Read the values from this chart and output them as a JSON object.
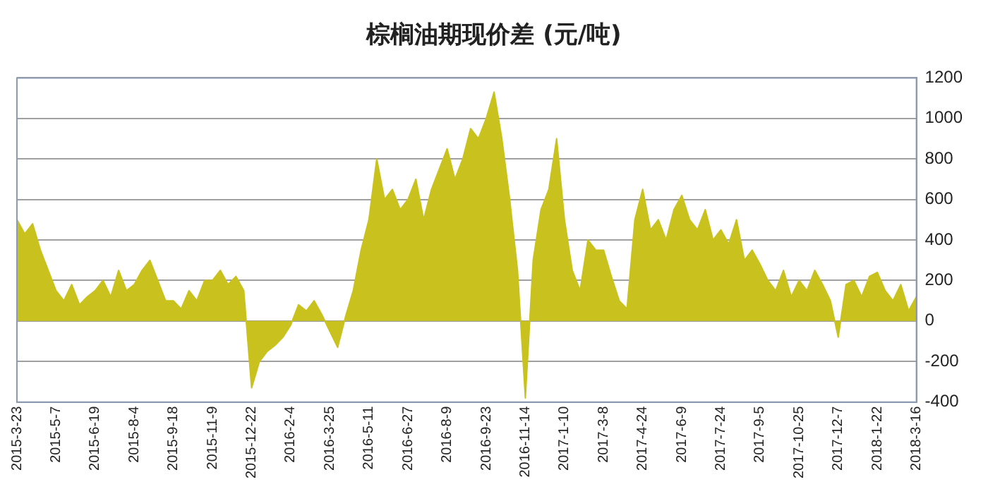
{
  "chart_data": {
    "type": "area",
    "title": "棕榈油期现价差 (元/吨)",
    "categories": [
      "2015-3-23",
      null,
      null,
      null,
      null,
      "2015-5-7",
      null,
      null,
      null,
      null,
      "2015-6-19",
      null,
      null,
      null,
      null,
      "2015-8-4",
      null,
      null,
      null,
      null,
      "2015-9-18",
      null,
      null,
      null,
      null,
      "2015-11-9",
      null,
      null,
      null,
      null,
      "2015-12-22",
      null,
      null,
      null,
      null,
      "2016-2-4",
      null,
      null,
      null,
      null,
      "2016-3-25",
      null,
      null,
      null,
      null,
      "2016-5-11",
      null,
      null,
      null,
      null,
      "2016-6-27",
      null,
      null,
      null,
      null,
      "2016-8-9",
      null,
      null,
      null,
      null,
      "2016-9-23",
      null,
      null,
      null,
      null,
      "2016-11-14",
      null,
      null,
      null,
      null,
      "2017-1-10",
      null,
      null,
      null,
      null,
      "2017-3-8",
      null,
      null,
      null,
      null,
      "2017-4-24",
      null,
      null,
      null,
      null,
      "2017-6-9",
      null,
      null,
      null,
      null,
      "2017-7-24",
      null,
      null,
      null,
      null,
      "2017-9-5",
      null,
      null,
      null,
      null,
      "2017-10-25",
      null,
      null,
      null,
      null,
      "2017-12-7",
      null,
      null,
      null,
      null,
      "2018-1-22",
      null,
      null,
      null,
      null,
      "2018-3-16"
    ],
    "series": [
      {
        "color": "#c9c21e",
        "values": [
          500,
          430,
          480,
          350,
          250,
          150,
          100,
          180,
          80,
          120,
          150,
          200,
          120,
          250,
          150,
          180,
          250,
          300,
          200,
          100,
          100,
          60,
          150,
          100,
          200,
          200,
          250,
          180,
          220,
          150,
          -330,
          -200,
          -150,
          -120,
          -80,
          -20,
          80,
          50,
          100,
          30,
          -50,
          -130,
          20,
          150,
          350,
          500,
          800,
          600,
          650,
          550,
          600,
          700,
          500,
          650,
          750,
          850,
          700,
          800,
          950,
          900,
          1000,
          1130,
          900,
          600,
          250,
          -380,
          300,
          550,
          650,
          900,
          500,
          250,
          150,
          400,
          350,
          350,
          220,
          100,
          60,
          500,
          650,
          450,
          500,
          400,
          550,
          620,
          500,
          450,
          550,
          400,
          450,
          380,
          500,
          300,
          350,
          280,
          200,
          150,
          250,
          120,
          200,
          150,
          250,
          180,
          100,
          -80,
          180,
          200,
          120,
          220,
          240,
          150,
          100,
          180,
          50,
          120
        ]
      }
    ],
    "ylim": [
      -400,
      1200
    ],
    "yticks": [
      -400,
      -200,
      0,
      200,
      400,
      600,
      800,
      1000,
      1200
    ],
    "grid": "y"
  }
}
